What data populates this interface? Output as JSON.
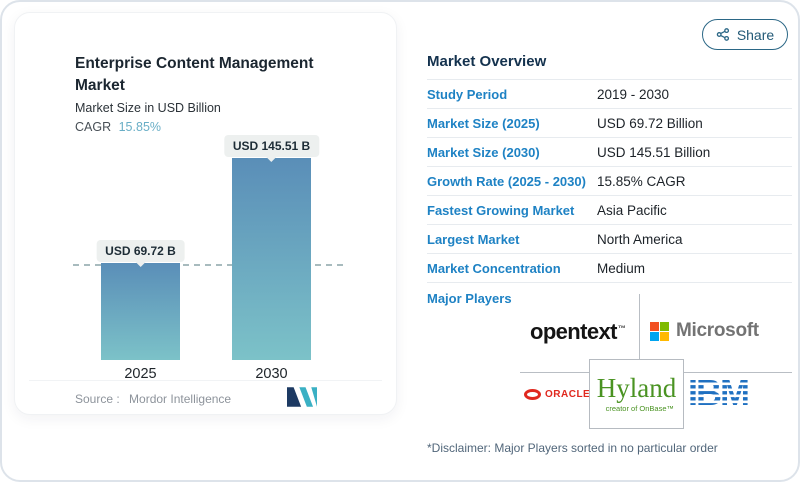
{
  "share": {
    "label": "Share"
  },
  "chart_card": {
    "title": "Enterprise Content Management Market",
    "subtitle": "Market Size in USD Billion",
    "cagr_label": "CAGR",
    "cagr_value": "15.85%",
    "source_label": "Source :",
    "source_value": "Mordor Intelligence"
  },
  "chart_data": {
    "type": "bar",
    "title": "Enterprise Content Management Market",
    "ylabel": "Market Size in USD Billion",
    "categories": [
      "2025",
      "2030"
    ],
    "values": [
      69.72,
      145.51
    ],
    "value_labels": [
      "USD 69.72 B",
      "USD 145.51 B"
    ],
    "cagr": "15.85%",
    "reference_dashed_line_at": 69.72,
    "bar_gradient": [
      "#5a8eb8",
      "#7cc2c8"
    ],
    "grid": false,
    "legend": "none"
  },
  "overview": {
    "heading": "Market Overview",
    "rows": [
      {
        "label": "Study Period",
        "value": "2019 - 2030"
      },
      {
        "label": "Market Size (2025)",
        "value": "USD 69.72 Billion"
      },
      {
        "label": "Market Size (2030)",
        "value": "USD 145.51 Billion"
      },
      {
        "label": "Growth Rate (2025 - 2030)",
        "value": "15.85% CAGR"
      },
      {
        "label": "Fastest Growing Market",
        "value": "Asia Pacific"
      },
      {
        "label": "Largest Market",
        "value": "North America"
      },
      {
        "label": "Market Concentration",
        "value": "Medium"
      }
    ],
    "major_players_label": "Major Players",
    "players": {
      "opentext": {
        "name": "opentext",
        "trademark": "™"
      },
      "microsoft": {
        "name": "Microsoft",
        "square_colors": [
          "#f25022",
          "#7fba00",
          "#00a4ef",
          "#ffb900"
        ]
      },
      "oracle": {
        "name": "ORACLE",
        "color": "#e0281e"
      },
      "hyland": {
        "name": "Hyland",
        "tagline": "creator of OnBase™",
        "color": "#4a9322"
      },
      "ibm": {
        "name": "IBM",
        "color": "#1f70c1"
      }
    },
    "disclaimer": "*Disclaimer: Major Players sorted in no particular order"
  },
  "colors": {
    "accent_blue": "#1e82c4",
    "heading_navy": "#14324e",
    "cagr_teal": "#69aec6",
    "share_teal": "#2b6786",
    "divider_gray": "#e7ebef",
    "logo_line_gray": "#b9bec4",
    "mordor_navy": "#1d3a63",
    "mordor_teal": "#3ab0c4"
  }
}
